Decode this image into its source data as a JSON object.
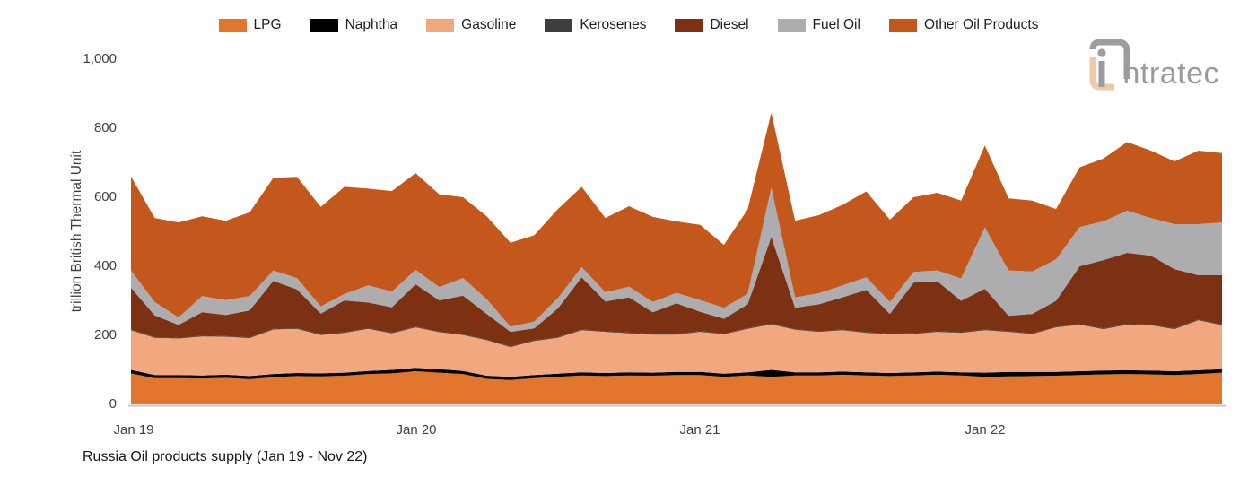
{
  "caption": "Russia Oil products supply (Jan 19 - Nov 22)",
  "logo": {
    "text": "ntratec",
    "full_name": "intratec",
    "text_color": "#9B9B9B",
    "arc_gray": "#9D9D9D",
    "arc_peach": "#F2C9A8"
  },
  "y_axis": {
    "title": "trillion British Thermal Unit",
    "ticks": [
      "0",
      "200",
      "400",
      "600",
      "800",
      "1,000"
    ]
  },
  "x_axis": {
    "ticks": [
      "Jan 19",
      "Jan 20",
      "Jan 21",
      "Jan 22"
    ]
  },
  "chart_data": {
    "type": "area",
    "stacked": true,
    "title": "Russia Oil products supply (Jan 19 - Nov 22)",
    "ylabel": "trillion British Thermal Unit",
    "ylim": [
      0,
      1000
    ],
    "grid": false,
    "legend_position": "top",
    "axis_line_color": "#C6C6C6",
    "x": [
      "Jan 19",
      "Feb 19",
      "Mar 19",
      "Apr 19",
      "May 19",
      "Jun 19",
      "Jul 19",
      "Aug 19",
      "Sep 19",
      "Oct 19",
      "Nov 19",
      "Dec 19",
      "Jan 20",
      "Feb 20",
      "Mar 20",
      "Apr 20",
      "May 20",
      "Jun 20",
      "Jul 20",
      "Aug 20",
      "Sep 20",
      "Oct 20",
      "Nov 20",
      "Dec 20",
      "Jan 21",
      "Feb 21",
      "Mar 21",
      "Apr 21",
      "May 21",
      "Jun 21",
      "Jul 21",
      "Aug 21",
      "Sep 21",
      "Oct 21",
      "Nov 21",
      "Dec 21",
      "Jan 22",
      "Feb 22",
      "Mar 22",
      "Apr 22",
      "May 22",
      "Jun 22",
      "Jul 22",
      "Aug 22",
      "Sep 22",
      "Oct 22",
      "Nov 22"
    ],
    "series": [
      {
        "name": "LPG",
        "color": "#E2762E",
        "values": [
          90,
          76,
          76,
          75,
          77,
          73,
          79,
          82,
          81,
          83,
          88,
          90,
          96,
          92,
          88,
          74,
          71,
          76,
          80,
          84,
          82,
          84,
          83,
          85,
          85,
          80,
          84,
          80,
          84,
          84,
          86,
          84,
          82,
          84,
          86,
          84,
          80,
          81,
          82,
          83,
          85,
          87,
          88,
          87,
          85,
          88,
          92
        ]
      },
      {
        "name": "Naphtha",
        "color": "#000000",
        "values": [
          10,
          9,
          9,
          9,
          9,
          9,
          9,
          9,
          9,
          9,
          9,
          10,
          10,
          10,
          9,
          9,
          9,
          9,
          9,
          9,
          9,
          9,
          9,
          9,
          9,
          9,
          9,
          20,
          9,
          9,
          9,
          9,
          9,
          9,
          9,
          9,
          12,
          13,
          12,
          11,
          11,
          11,
          11,
          11,
          11,
          11,
          10
        ]
      },
      {
        "name": "Gasoline",
        "color": "#F2A87E",
        "values": [
          115,
          108,
          106,
          113,
          110,
          110,
          129,
          128,
          111,
          115,
          122,
          106,
          117,
          107,
          104,
          103,
          86,
          99,
          104,
          122,
          119,
          113,
          110,
          108,
          116,
          114,
          126,
          132,
          123,
          117,
          120,
          114,
          112,
          111,
          115,
          114,
          123,
          116,
          110,
          129,
          135,
          120,
          132,
          131,
          122,
          145,
          127
        ]
      },
      {
        "name": "Kerosenes",
        "color": "#3E3E3E",
        "values": [
          2,
          2,
          2,
          2,
          2,
          2,
          2,
          2,
          2,
          2,
          2,
          2,
          2,
          2,
          2,
          2,
          2,
          2,
          2,
          2,
          2,
          2,
          2,
          2,
          2,
          2,
          2,
          2,
          2,
          2,
          2,
          2,
          2,
          2,
          2,
          2,
          2,
          2,
          2,
          2,
          2,
          2,
          2,
          2,
          2,
          2,
          2
        ]
      },
      {
        "name": "Diesel",
        "color": "#7C3112",
        "values": [
          121,
          63,
          37,
          68,
          61,
          78,
          139,
          112,
          60,
          92,
          74,
          73,
          123,
          90,
          112,
          74,
          42,
          34,
          83,
          151,
          86,
          102,
          63,
          89,
          56,
          43,
          69,
          251,
          62,
          78,
          93,
          123,
          57,
          147,
          145,
          91,
          118,
          45,
          56,
          75,
          167,
          198,
          206,
          200,
          172,
          128,
          143
        ]
      },
      {
        "name": "Fuel Oil",
        "color": "#ADADAF",
        "values": [
          50,
          39,
          22,
          47,
          43,
          42,
          30,
          33,
          21,
          19,
          50,
          46,
          42,
          39,
          51,
          43,
          15,
          20,
          30,
          30,
          27,
          31,
          30,
          30,
          34,
          32,
          30,
          143,
          30,
          32,
          35,
          36,
          35,
          31,
          31,
          65,
          178,
          131,
          123,
          120,
          114,
          112,
          122,
          109,
          130,
          148,
          153
        ]
      },
      {
        "name": "Other Oil Products",
        "color": "#C3571C",
        "values": [
          272,
          243,
          275,
          231,
          230,
          242,
          268,
          293,
          288,
          310,
          280,
          291,
          280,
          268,
          234,
          240,
          243,
          250,
          258,
          232,
          215,
          233,
          246,
          207,
          218,
          182,
          245,
          217,
          222,
          226,
          233,
          249,
          238,
          216,
          225,
          225,
          237,
          209,
          205,
          146,
          173,
          182,
          199,
          195,
          182,
          213,
          201
        ]
      }
    ]
  }
}
